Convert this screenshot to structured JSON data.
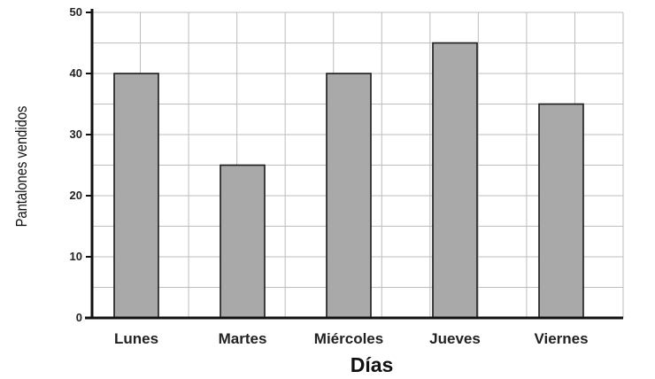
{
  "chart_data": {
    "type": "bar",
    "categories": [
      "Lunes",
      "Martes",
      "Miércoles",
      "Jueves",
      "Viernes"
    ],
    "values": [
      40,
      25,
      40,
      45,
      35
    ],
    "xlabel": "Días",
    "ylabel": "Pantalones vendidos",
    "ylim": [
      0,
      50
    ],
    "yticks": [
      0,
      10,
      20,
      30,
      40,
      50
    ],
    "grid": true,
    "colors": {
      "bar": "#a9a9a9",
      "bar_stroke": "#1a1a1a",
      "grid": "#bdbdbd",
      "axis": "#111111"
    }
  }
}
